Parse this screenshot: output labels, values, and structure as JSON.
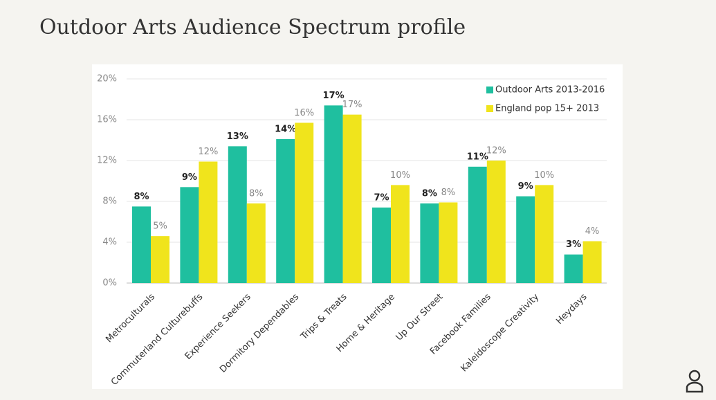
{
  "title": "Outdoor Arts Audience Spectrum profile",
  "chart_data": {
    "type": "bar",
    "categories": [
      "Metroculturals",
      "Commuterland Culturebuffs",
      "Experience Seekers",
      "Dormitory Dependables",
      "Trips & Treats",
      "Home & Heritage",
      "Up Our Street",
      "Facebook Families",
      "Kaleidoscope Creativity",
      "Heydays"
    ],
    "series": [
      {
        "name": "Outdoor Arts 2013-2016",
        "color": "#1fbf9f",
        "values": [
          7.5,
          9.4,
          13.4,
          14.1,
          17.4,
          7.4,
          7.8,
          11.4,
          8.5,
          2.8
        ],
        "value_labels": [
          "8%",
          "9%",
          "13%",
          "14%",
          "17%",
          "7%",
          "8%",
          "11%",
          "9%",
          "3%"
        ]
      },
      {
        "name": "England pop 15+ 2013",
        "color": "#f0e41c",
        "values": [
          4.6,
          11.9,
          7.8,
          15.7,
          16.5,
          9.6,
          7.9,
          12.0,
          9.6,
          4.1
        ],
        "value_labels": [
          "5%",
          "12%",
          "8%",
          "16%",
          "17%",
          "10%",
          "8%",
          "12%",
          "10%",
          "4%"
        ]
      }
    ],
    "ylim": [
      0,
      20
    ],
    "yticks": [
      {
        "value": 0,
        "label": "0%"
      },
      {
        "value": 4,
        "label": "4%"
      },
      {
        "value": 8,
        "label": "8%"
      },
      {
        "value": 12,
        "label": "12%"
      },
      {
        "value": 16,
        "label": "16%"
      },
      {
        "value": 20,
        "label": "20%"
      }
    ],
    "grid": true,
    "legend": "top-right"
  }
}
